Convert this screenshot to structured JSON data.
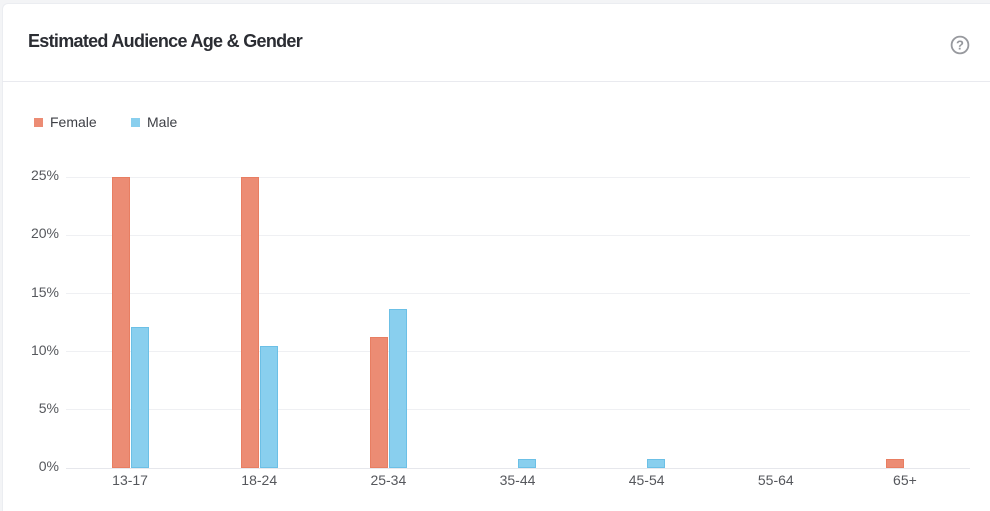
{
  "page": {
    "background_color": "#f3f4f6",
    "card_background_color": "#ffffff"
  },
  "header": {
    "title": "Estimated Audience Age & Gender",
    "help_icon": "question-mark-circle-icon"
  },
  "legend": [
    {
      "label": "Female",
      "color": "#ec8c74",
      "border_color": "#e87e62"
    },
    {
      "label": "Male",
      "color": "#89cfee",
      "border_color": "#6cc0e6"
    }
  ],
  "chart_data": {
    "type": "bar",
    "title": "Estimated Audience Age & Gender",
    "categories": [
      "13-17",
      "18-24",
      "25-34",
      "35-44",
      "45-54",
      "55-64",
      "65+"
    ],
    "series": [
      {
        "name": "Female",
        "color": "#ec8c74",
        "border_color": "#e87e62",
        "values": [
          25,
          25,
          11.3,
          0,
          0,
          0,
          0.8
        ]
      },
      {
        "name": "Male",
        "color": "#89cfee",
        "border_color": "#6cc0e6",
        "values": [
          12.1,
          10.5,
          13.7,
          0.8,
          0.8,
          0,
          0
        ]
      }
    ],
    "xlabel": "",
    "ylabel": "",
    "yticks": [
      "0%",
      "5%",
      "10%",
      "15%",
      "20%",
      "25%"
    ],
    "ytick_values": [
      0,
      5,
      10,
      15,
      20,
      25
    ],
    "ylim": [
      0,
      25
    ],
    "grid": "horizontal",
    "legend_position": "top-left"
  }
}
